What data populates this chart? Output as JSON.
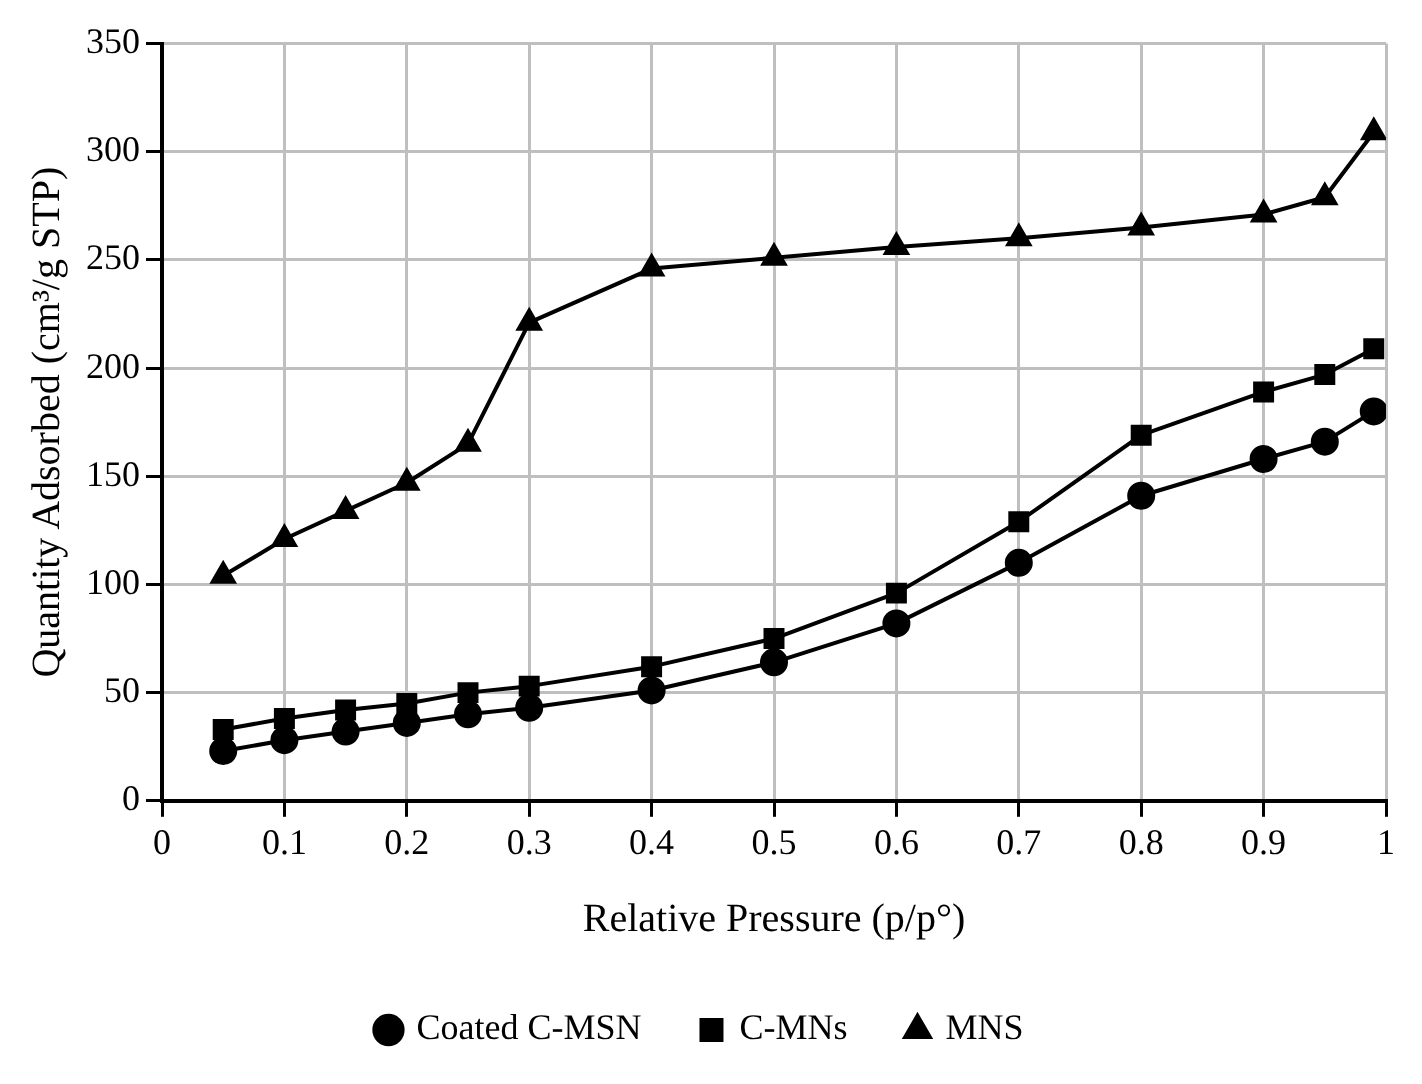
{
  "chart_data": {
    "type": "line",
    "xlabel": "Relative Pressure (p/p°)",
    "ylabel": "Quantity Adsorbed (cm³/g STP)",
    "x": [
      0.05,
      0.1,
      0.15,
      0.2,
      0.25,
      0.3,
      0.4,
      0.5,
      0.6,
      0.7,
      0.8,
      0.9,
      0.95,
      0.99
    ],
    "series": [
      {
        "name": "Coated C-MSN",
        "color": "#000000",
        "marker": "circle",
        "values": [
          23,
          28,
          32,
          36,
          40,
          43,
          51,
          64,
          82,
          110,
          141,
          158,
          166,
          180
        ]
      },
      {
        "name": "C-MNs",
        "color": "#000000",
        "marker": "square",
        "values": [
          33,
          38,
          42,
          45,
          50,
          53,
          62,
          75,
          96,
          129,
          169,
          189,
          197,
          209
        ]
      },
      {
        "name": "MNS",
        "color": "#000000",
        "marker": "triangle",
        "values": [
          104,
          121,
          134,
          147,
          165,
          221,
          246,
          251,
          256,
          260,
          265,
          271,
          279,
          309
        ]
      }
    ],
    "xlim": [
      0,
      1
    ],
    "xticks": [
      0,
      0.1,
      0.2,
      0.3,
      0.4,
      0.5,
      0.6,
      0.7,
      0.8,
      0.9,
      1
    ],
    "ylim": [
      0,
      350
    ],
    "yticks": [
      0,
      50,
      100,
      150,
      200,
      250,
      300,
      350
    ],
    "grid": true,
    "legend": "bottom",
    "line_style": "solid"
  }
}
